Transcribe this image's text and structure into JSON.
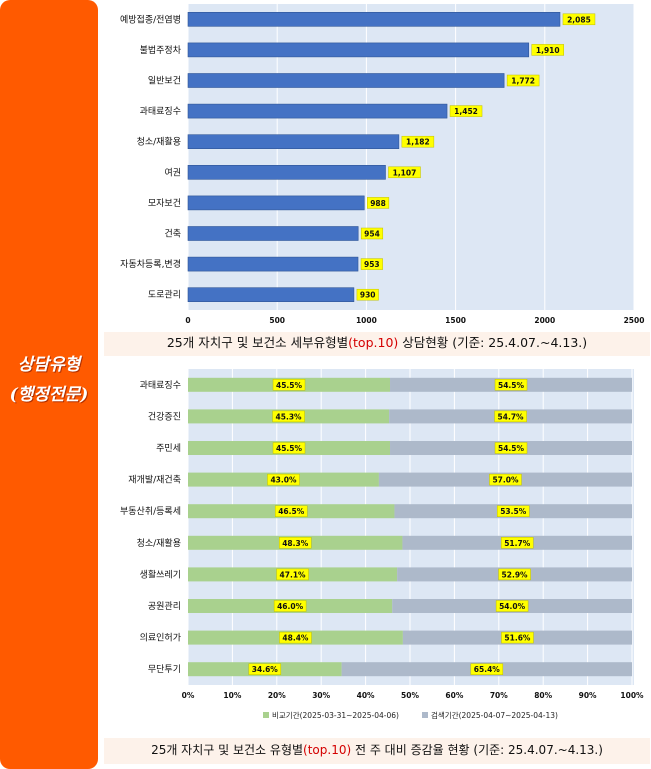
{
  "sidebar": {
    "title_line1": "상담유형",
    "title_line2": "(행정전문)"
  },
  "captions": {
    "chart1": {
      "prefix": "25개 자치구 및 보건소 세부유형별",
      "highlight": "(top.10)",
      "suffix": " 상담현황 (기준: 25.4.07.~4.13.)"
    },
    "chart2": {
      "prefix": "25개 자치구 및 보건소 유형별",
      "highlight": "(top.10)",
      "suffix": " 전 주 대비 증감율 현황 (기준: 25.4.07.~4.13.)"
    }
  },
  "colors": {
    "bar": "#4472c4",
    "compare": "#a9d18e",
    "search": "#adb9ca",
    "label_bg": "#ffff00",
    "accent": "#ff5a00"
  },
  "chart_data": [
    {
      "type": "bar",
      "orientation": "horizontal",
      "categories": [
        "예방접종/전염병",
        "불법주정차",
        "일반보건",
        "과태료징수",
        "청소/재활용",
        "여권",
        "모자보건",
        "건축",
        "자동차등록,변경",
        "도로관리"
      ],
      "values": [
        2085,
        1910,
        1772,
        1452,
        1182,
        1107,
        988,
        954,
        953,
        930
      ],
      "value_labels": [
        "2,085",
        "1,910",
        "1,772",
        "1,452",
        "1,182",
        "1,107",
        "988",
        "954",
        "953",
        "930"
      ],
      "xlim": [
        0,
        2500
      ],
      "xticks": [
        "0",
        "500",
        "1000",
        "1500",
        "2000",
        "2500"
      ],
      "grid": true
    },
    {
      "type": "bar",
      "orientation": "horizontal",
      "stacked": true,
      "percent": true,
      "categories": [
        "과태료징수",
        "건강증진",
        "주민세",
        "재개발/재건축",
        "부동산취/등록세",
        "청소/재활용",
        "생활쓰레기",
        "공원관리",
        "의료인허가",
        "무단투기"
      ],
      "series": [
        {
          "name": "비교기간(2025-03-31~2025-04-06)",
          "values": [
            45.5,
            45.3,
            45.5,
            43.0,
            46.5,
            48.3,
            47.1,
            46.0,
            48.4,
            34.6
          ],
          "labels": [
            "45.5%",
            "45.3%",
            "45.5%",
            "43.0%",
            "46.5%",
            "48.3%",
            "47.1%",
            "46.0%",
            "48.4%",
            "34.6%"
          ]
        },
        {
          "name": "검색기간(2025-04-07~2025-04-13)",
          "values": [
            54.5,
            54.7,
            54.5,
            57.0,
            53.5,
            51.7,
            52.9,
            54.0,
            51.6,
            65.4
          ],
          "labels": [
            "54.5%",
            "54.7%",
            "54.5%",
            "57.0%",
            "53.5%",
            "51.7%",
            "52.9%",
            "54.0%",
            "51.6%",
            "65.4%"
          ]
        }
      ],
      "xlim": [
        0,
        100
      ],
      "xticks": [
        "0%",
        "10%",
        "20%",
        "30%",
        "40%",
        "50%",
        "60%",
        "70%",
        "80%",
        "90%",
        "100%"
      ],
      "legend": "bottom",
      "grid": true
    }
  ]
}
